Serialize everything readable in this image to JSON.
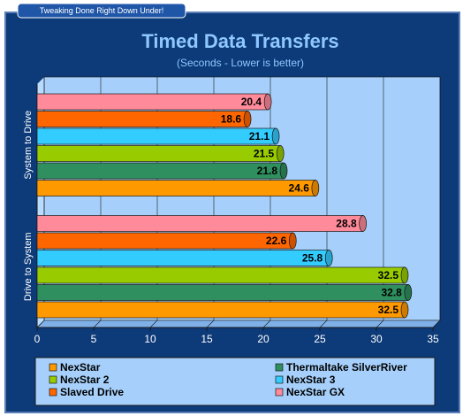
{
  "header": {
    "tagline": "Tweaking Done Right Down Under!"
  },
  "chart_data": {
    "type": "bar",
    "orientation": "horizontal",
    "title": "Timed Data Transfers",
    "subtitle": "(Seconds - Lower is better)",
    "categories": [
      "System to Drive",
      "Drive to System"
    ],
    "series": [
      {
        "name": "NexStar",
        "color": "#ff9900",
        "values": [
          24.6,
          32.5
        ]
      },
      {
        "name": "Thermaltake SilverRiver",
        "color": "#2f8f5f",
        "values": [
          21.8,
          32.8
        ]
      },
      {
        "name": "NexStar 2",
        "color": "#99cc00",
        "values": [
          21.5,
          32.5
        ]
      },
      {
        "name": "NexStar 3",
        "color": "#33ccff",
        "values": [
          21.1,
          25.8
        ]
      },
      {
        "name": "Slaved Drive",
        "color": "#ff6600",
        "values": [
          18.6,
          22.6
        ]
      },
      {
        "name": "NexStar GX",
        "color": "#ff8a9a",
        "values": [
          20.4,
          28.8
        ]
      }
    ],
    "xlim": [
      0,
      35
    ],
    "xticks": [
      0,
      5,
      10,
      15,
      20,
      25,
      30,
      35
    ],
    "grid": true,
    "legend": "bottom"
  }
}
